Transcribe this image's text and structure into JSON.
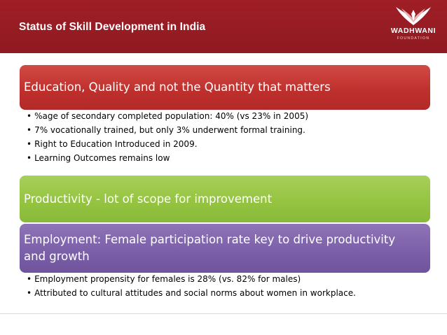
{
  "header": {
    "title": "Status of Skill Development in India",
    "logo_text": "WADHWANI",
    "logo_subtext": "FOUNDATION",
    "background_color": "#981c24"
  },
  "sections": [
    {
      "heading": "Education, Quality and not the Quantity that matters",
      "color": "#c0312e",
      "bullets": [
        "%age of secondary completed population: 40% (vs 23% in 2005)",
        "7% vocationally trained, but only 3% underwent formal training.",
        "Right to Education Introduced in 2009.",
        "Learning Outcomes remains low"
      ]
    },
    {
      "heading": "Productivity - lot of scope for improvement",
      "color": "#92c13f",
      "bullets": []
    },
    {
      "heading_line1": "Employment: Female participation rate key to drive productivity",
      "heading_line2": "and growth",
      "color": "#7b5fa9",
      "bullets": [
        "Employment propensity for females is 28% (vs. 82% for males)",
        "Attributed to cultural attitudes and social norms about women in workplace."
      ]
    }
  ]
}
